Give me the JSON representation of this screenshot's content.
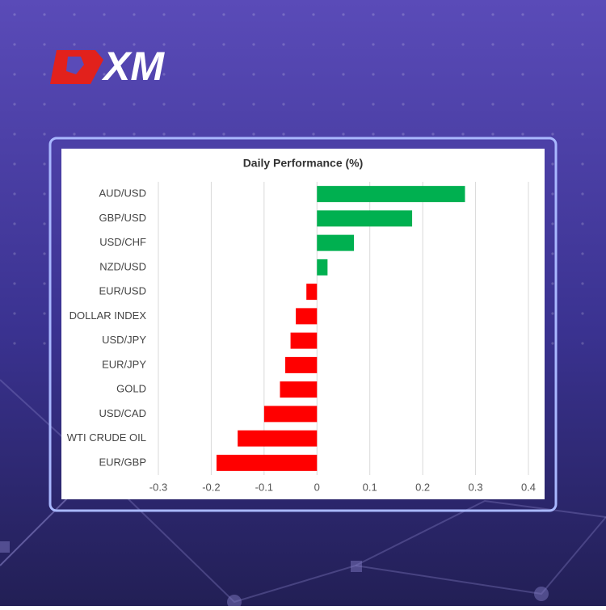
{
  "logo": "XM",
  "chart_data": {
    "type": "bar",
    "orientation": "horizontal",
    "title": "Daily Performance (%)",
    "categories": [
      "AUD/USD",
      "GBP/USD",
      "USD/CHF",
      "NZD/USD",
      "EUR/USD",
      "DOLLAR INDEX",
      "USD/JPY",
      "EUR/JPY",
      "GOLD",
      "USD/CAD",
      "WTI CRUDE OIL",
      "EUR/GBP"
    ],
    "values": [
      0.28,
      0.18,
      0.07,
      0.02,
      -0.02,
      -0.04,
      -0.05,
      -0.06,
      -0.07,
      -0.1,
      -0.15,
      -0.19
    ],
    "positive_color": "#00b050",
    "negative_color": "#ff0000",
    "xlim": [
      -0.3,
      0.4
    ],
    "xticks": [
      -0.3,
      -0.2,
      -0.1,
      0,
      0.1,
      0.2,
      0.3,
      0.4
    ],
    "grid": true
  }
}
